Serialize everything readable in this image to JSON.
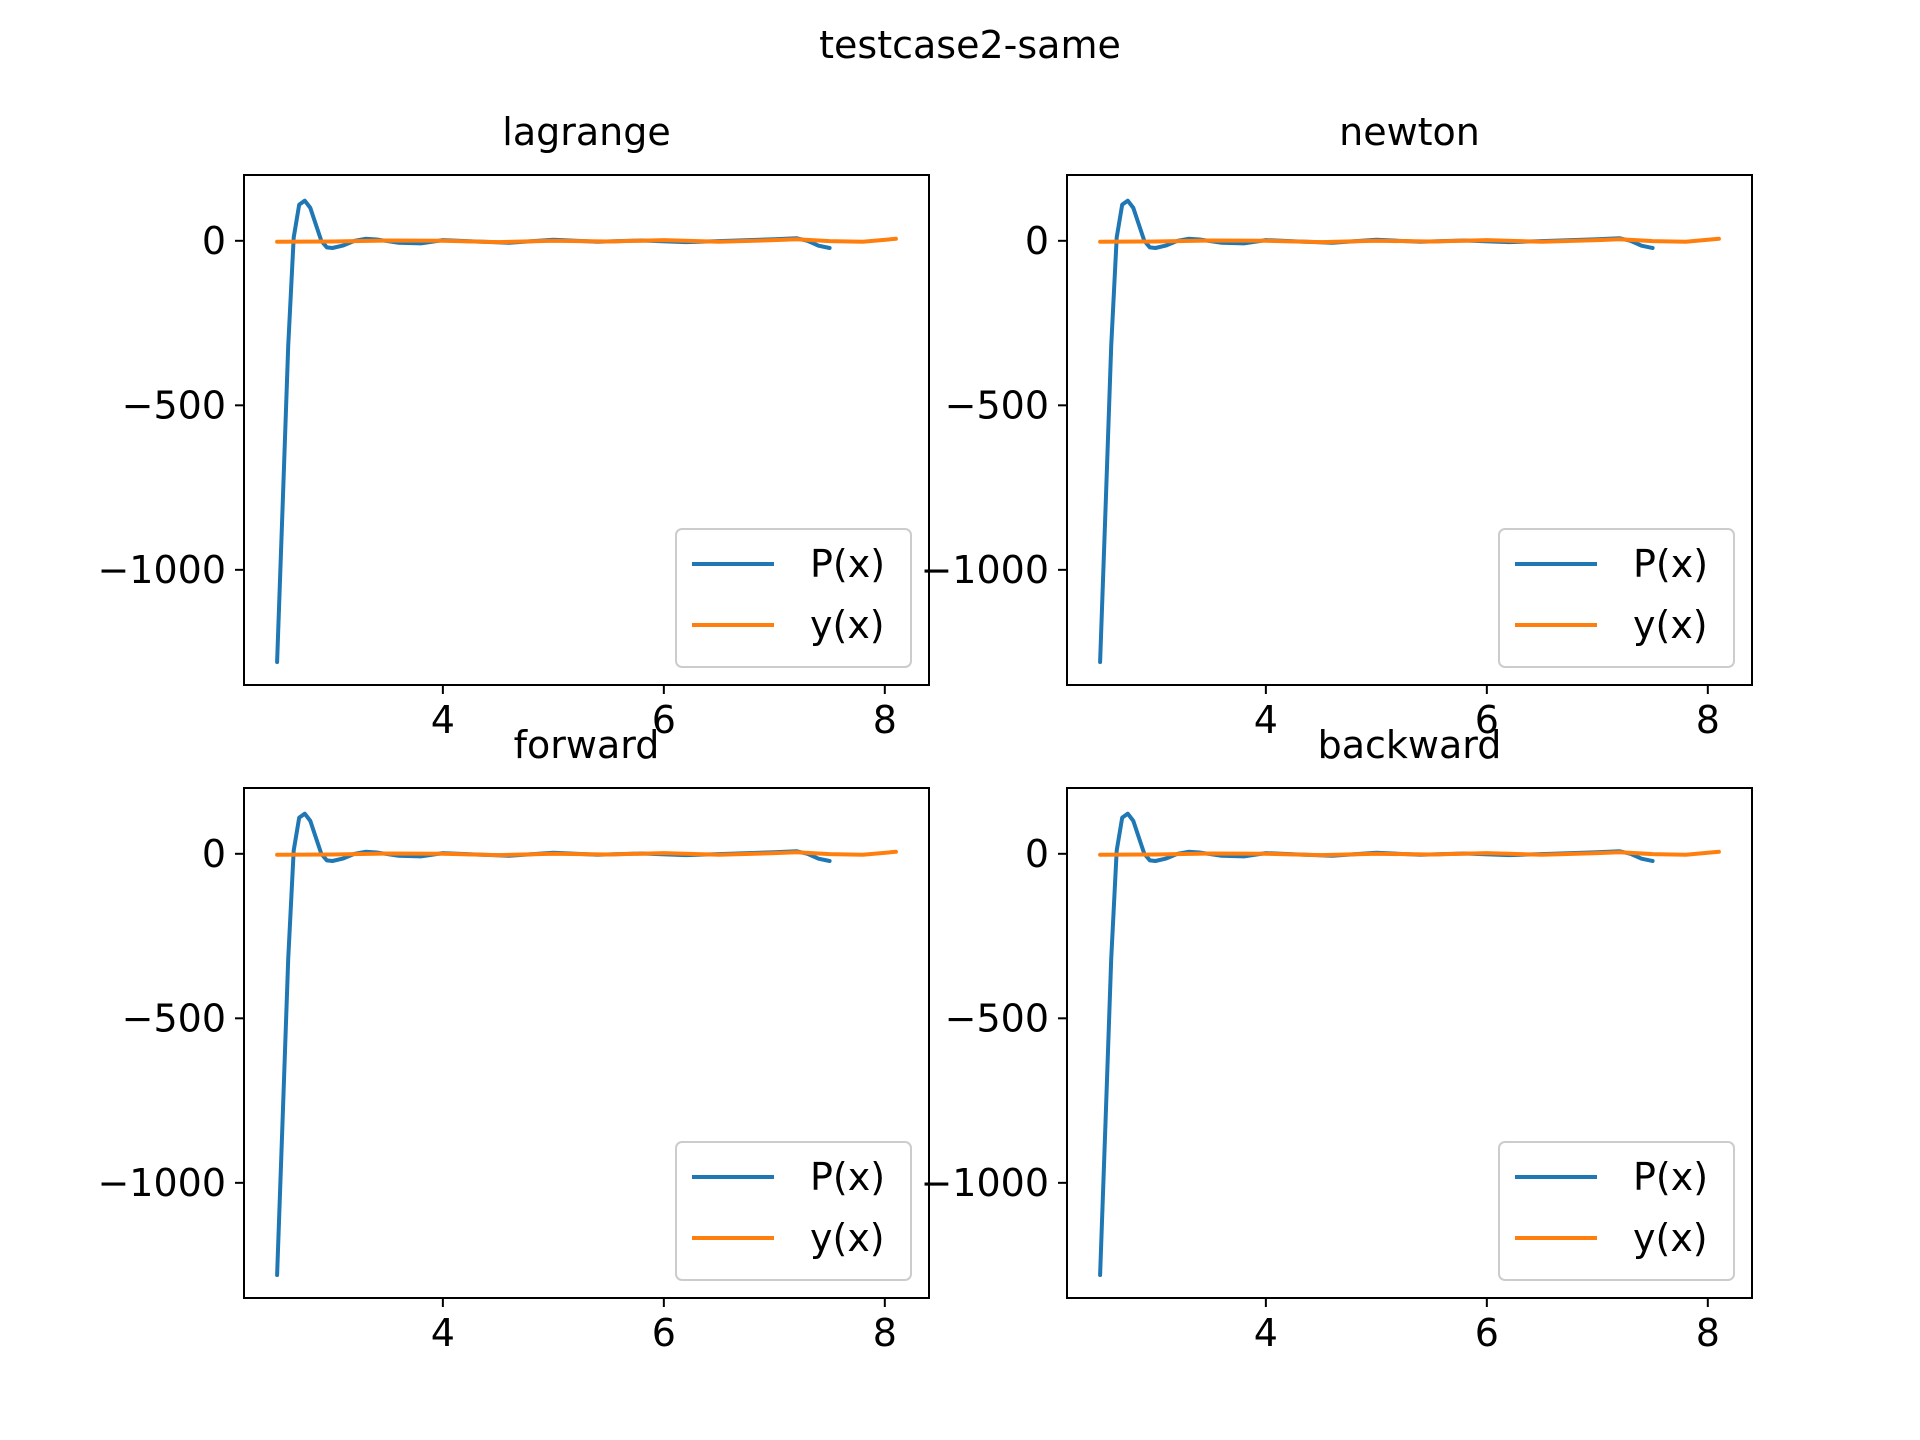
{
  "suptitle": "testcase2-same",
  "colors": {
    "px": "#1f77b4",
    "yx": "#ff7f0e",
    "axis": "#000000",
    "legend_border": "#cccccc"
  },
  "chart_data": [
    {
      "type": "line",
      "title": "lagrange",
      "xlim": [
        2.2,
        8.4
      ],
      "ylim": [
        -1350,
        200
      ],
      "xticks": [
        4,
        6,
        8
      ],
      "yticks": [
        0,
        -500,
        -1000
      ],
      "legend": "lower right",
      "grid": false,
      "series": [
        {
          "name": "P(x)",
          "x": [
            2.5,
            2.55,
            2.6,
            2.65,
            2.7,
            2.75,
            2.8,
            2.85,
            2.9,
            2.95,
            3.0,
            3.1,
            3.2,
            3.3,
            3.4,
            3.6,
            3.8,
            4.0,
            4.3,
            4.6,
            5.0,
            5.4,
            5.8,
            6.2,
            6.6,
            7.0,
            7.2,
            7.3,
            7.4,
            7.5
          ],
          "y": [
            -1280,
            -800,
            -320,
            10,
            110,
            122,
            100,
            50,
            0,
            -20,
            -22,
            -14,
            0,
            6,
            4,
            -6,
            -8,
            2,
            -2,
            -6,
            3,
            -3,
            1,
            -4,
            0,
            5,
            8,
            0,
            -15,
            -22
          ]
        },
        {
          "name": "y(x)",
          "x": [
            2.5,
            3.0,
            3.5,
            4.0,
            4.5,
            5.0,
            5.5,
            6.0,
            6.5,
            7.0,
            7.2,
            7.5,
            7.8,
            8.1
          ],
          "y": [
            -3,
            -2,
            1,
            0,
            -4,
            0,
            -2,
            2,
            -3,
            2,
            5,
            -1,
            -3,
            6
          ]
        }
      ]
    },
    {
      "type": "line",
      "title": "newton",
      "xlim": [
        2.2,
        8.4
      ],
      "ylim": [
        -1350,
        200
      ],
      "xticks": [
        4,
        6,
        8
      ],
      "yticks": [
        0,
        -500,
        -1000
      ],
      "legend": "lower right",
      "grid": false,
      "series": [
        {
          "name": "P(x)",
          "x": [
            2.5,
            2.55,
            2.6,
            2.65,
            2.7,
            2.75,
            2.8,
            2.85,
            2.9,
            2.95,
            3.0,
            3.1,
            3.2,
            3.3,
            3.4,
            3.6,
            3.8,
            4.0,
            4.3,
            4.6,
            5.0,
            5.4,
            5.8,
            6.2,
            6.6,
            7.0,
            7.2,
            7.3,
            7.4,
            7.5
          ],
          "y": [
            -1280,
            -800,
            -320,
            10,
            110,
            122,
            100,
            50,
            0,
            -20,
            -22,
            -14,
            0,
            6,
            4,
            -6,
            -8,
            2,
            -2,
            -6,
            3,
            -3,
            1,
            -4,
            0,
            5,
            8,
            0,
            -15,
            -22
          ]
        },
        {
          "name": "y(x)",
          "x": [
            2.5,
            3.0,
            3.5,
            4.0,
            4.5,
            5.0,
            5.5,
            6.0,
            6.5,
            7.0,
            7.2,
            7.5,
            7.8,
            8.1
          ],
          "y": [
            -3,
            -2,
            1,
            0,
            -4,
            0,
            -2,
            2,
            -3,
            2,
            5,
            -1,
            -3,
            6
          ]
        }
      ]
    },
    {
      "type": "line",
      "title": "forward",
      "xlim": [
        2.2,
        8.4
      ],
      "ylim": [
        -1350,
        200
      ],
      "xticks": [
        4,
        6,
        8
      ],
      "yticks": [
        0,
        -500,
        -1000
      ],
      "legend": "lower right",
      "grid": false,
      "series": [
        {
          "name": "P(x)",
          "x": [
            2.5,
            2.55,
            2.6,
            2.65,
            2.7,
            2.75,
            2.8,
            2.85,
            2.9,
            2.95,
            3.0,
            3.1,
            3.2,
            3.3,
            3.4,
            3.6,
            3.8,
            4.0,
            4.3,
            4.6,
            5.0,
            5.4,
            5.8,
            6.2,
            6.6,
            7.0,
            7.2,
            7.3,
            7.4,
            7.5
          ],
          "y": [
            -1280,
            -800,
            -320,
            10,
            110,
            122,
            100,
            50,
            0,
            -20,
            -22,
            -14,
            0,
            6,
            4,
            -6,
            -8,
            2,
            -2,
            -6,
            3,
            -3,
            1,
            -4,
            0,
            5,
            8,
            0,
            -15,
            -22
          ]
        },
        {
          "name": "y(x)",
          "x": [
            2.5,
            3.0,
            3.5,
            4.0,
            4.5,
            5.0,
            5.5,
            6.0,
            6.5,
            7.0,
            7.2,
            7.5,
            7.8,
            8.1
          ],
          "y": [
            -3,
            -2,
            1,
            0,
            -4,
            0,
            -2,
            2,
            -3,
            2,
            5,
            -1,
            -3,
            6
          ]
        }
      ]
    },
    {
      "type": "line",
      "title": "backward",
      "xlim": [
        2.2,
        8.4
      ],
      "ylim": [
        -1350,
        200
      ],
      "xticks": [
        4,
        6,
        8
      ],
      "yticks": [
        0,
        -500,
        -1000
      ],
      "legend": "lower right",
      "grid": false,
      "series": [
        {
          "name": "P(x)",
          "x": [
            2.5,
            2.55,
            2.6,
            2.65,
            2.7,
            2.75,
            2.8,
            2.85,
            2.9,
            2.95,
            3.0,
            3.1,
            3.2,
            3.3,
            3.4,
            3.6,
            3.8,
            4.0,
            4.3,
            4.6,
            5.0,
            5.4,
            5.8,
            6.2,
            6.6,
            7.0,
            7.2,
            7.3,
            7.4,
            7.5
          ],
          "y": [
            -1280,
            -800,
            -320,
            10,
            110,
            122,
            100,
            50,
            0,
            -20,
            -22,
            -14,
            0,
            6,
            4,
            -6,
            -8,
            2,
            -2,
            -6,
            3,
            -3,
            1,
            -4,
            0,
            5,
            8,
            0,
            -15,
            -22
          ]
        },
        {
          "name": "y(x)",
          "x": [
            2.5,
            3.0,
            3.5,
            4.0,
            4.5,
            5.0,
            5.5,
            6.0,
            6.5,
            7.0,
            7.2,
            7.5,
            7.8,
            8.1
          ],
          "y": [
            -3,
            -2,
            1,
            0,
            -4,
            0,
            -2,
            2,
            -3,
            2,
            5,
            -1,
            -3,
            6
          ]
        }
      ]
    }
  ]
}
